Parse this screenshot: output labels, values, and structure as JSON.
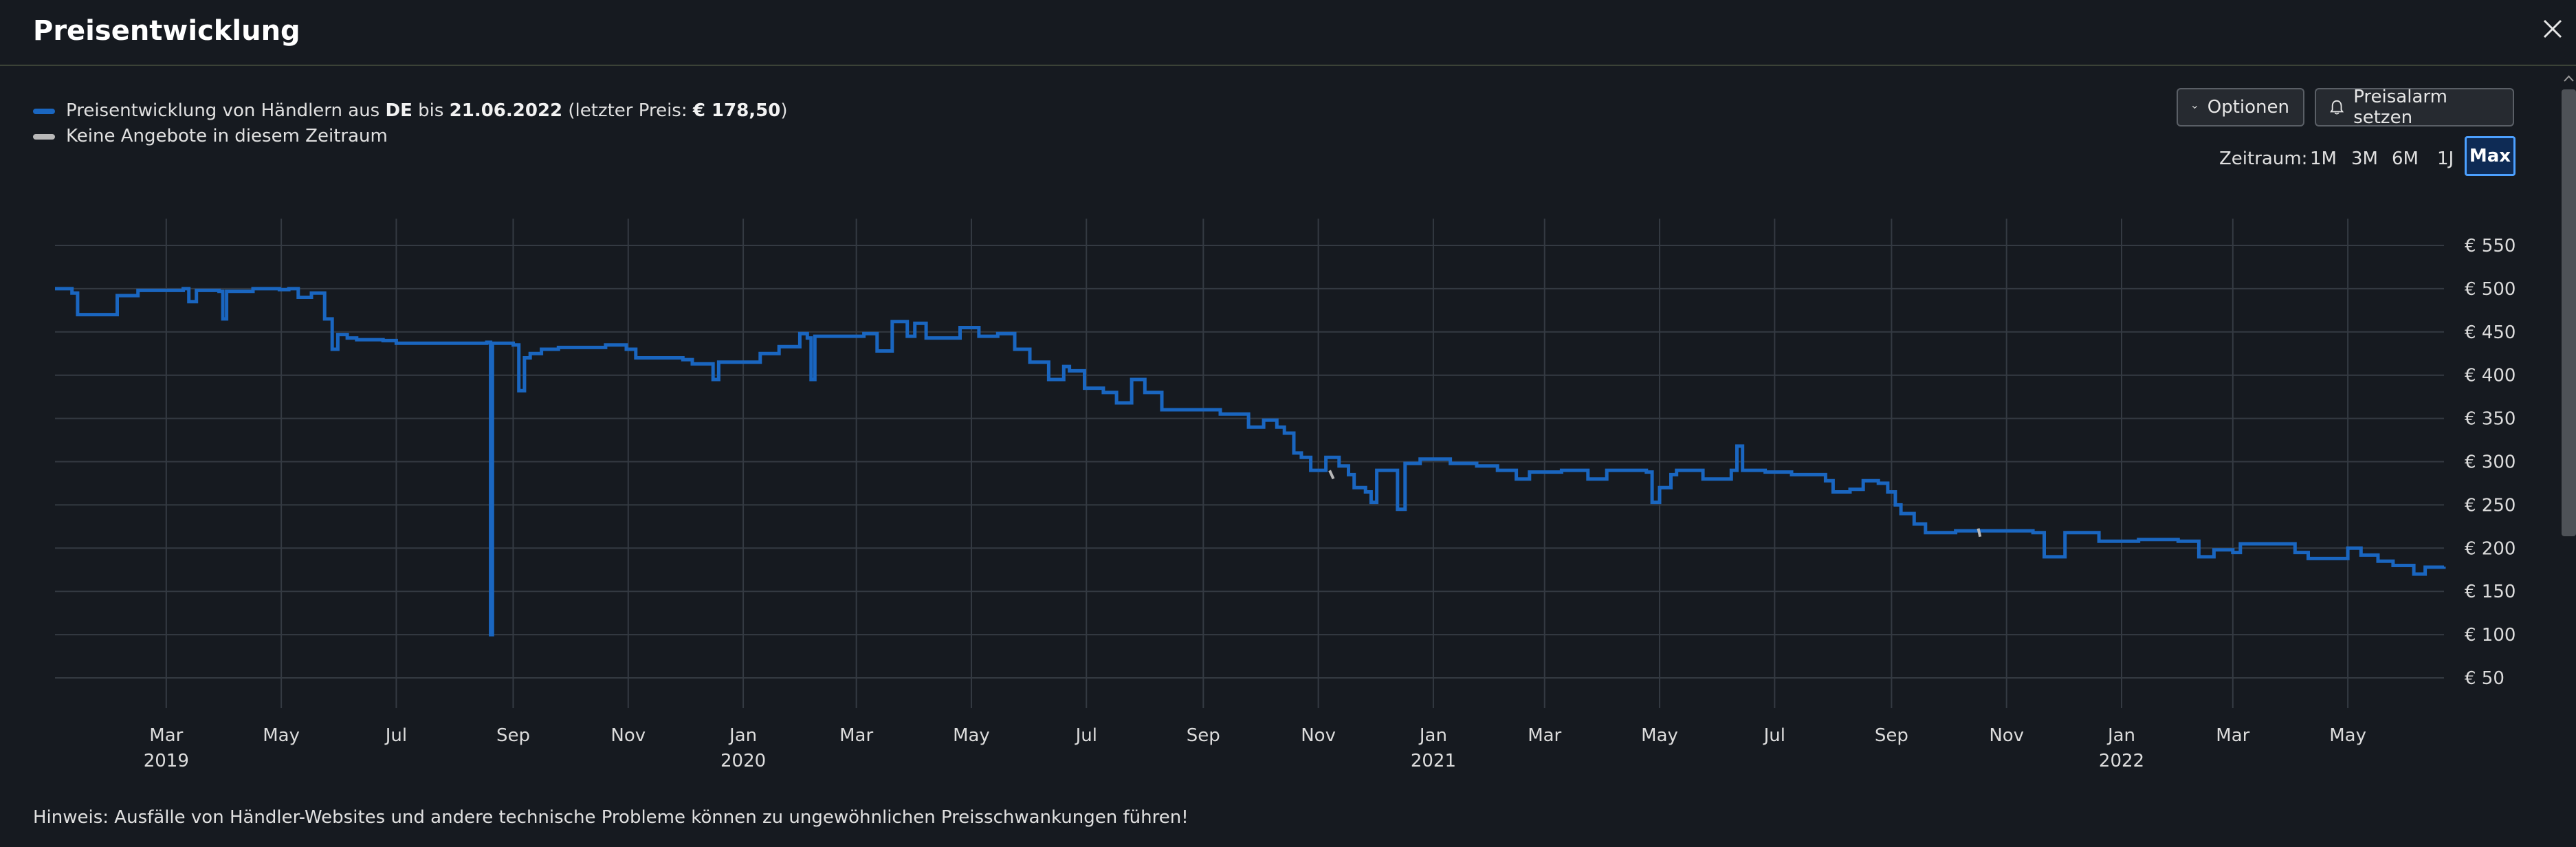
{
  "header": {
    "title": "Preisentwicklung"
  },
  "legend": {
    "line1_prefix": "Preisentwicklung von Händlern aus ",
    "country": "DE",
    "line1_mid": " bis ",
    "date": "21.06.2022",
    "line1_price_open": " (letzter Preis: ",
    "last_price": "€ 178,50",
    "line1_close": ")",
    "line2": "Keine Angebote in diesem Zeitraum"
  },
  "toolbar": {
    "options_label": "Optionen",
    "alarm_label": "Preisalarm setzen"
  },
  "timerange": {
    "label": "Zeitraum:",
    "options": [
      "1M",
      "3M",
      "6M",
      "1J",
      "Max"
    ],
    "selected": "Max"
  },
  "footer": {
    "note": "Hinweis: Ausfälle von Händler-Websites und andere technische Probleme können zu ungewöhnlichen Preisschwankungen führen!"
  },
  "colors": {
    "series": "#1a66c0",
    "no_offers": "#b8b8b8",
    "accent": "#4ca0ff",
    "background": "#161a20"
  },
  "chart_data": {
    "type": "line",
    "title": "",
    "xlabel": "",
    "ylabel": "",
    "x_range": [
      "2019-01-01",
      "2022-06-21"
    ],
    "ylim": [
      50,
      550
    ],
    "y_ticks": [
      50,
      100,
      150,
      200,
      250,
      300,
      350,
      400,
      450,
      500,
      550
    ],
    "y_tick_labels": [
      "€ 50",
      "€ 100",
      "€ 150",
      "€ 200",
      "€ 250",
      "€ 300",
      "€ 350",
      "€ 400",
      "€ 450",
      "€ 500",
      "€ 550"
    ],
    "x_ticks": [
      {
        "date": "2019-03-01",
        "label": "Mar",
        "year": "2019"
      },
      {
        "date": "2019-05-01",
        "label": "May",
        "year": ""
      },
      {
        "date": "2019-07-01",
        "label": "Jul",
        "year": ""
      },
      {
        "date": "2019-09-01",
        "label": "Sep",
        "year": ""
      },
      {
        "date": "2019-11-01",
        "label": "Nov",
        "year": ""
      },
      {
        "date": "2020-01-01",
        "label": "Jan",
        "year": "2020"
      },
      {
        "date": "2020-03-01",
        "label": "Mar",
        "year": ""
      },
      {
        "date": "2020-05-01",
        "label": "May",
        "year": ""
      },
      {
        "date": "2020-07-01",
        "label": "Jul",
        "year": ""
      },
      {
        "date": "2020-09-01",
        "label": "Sep",
        "year": ""
      },
      {
        "date": "2020-11-01",
        "label": "Nov",
        "year": ""
      },
      {
        "date": "2021-01-01",
        "label": "Jan",
        "year": "2021"
      },
      {
        "date": "2021-03-01",
        "label": "Mar",
        "year": ""
      },
      {
        "date": "2021-05-01",
        "label": "May",
        "year": ""
      },
      {
        "date": "2021-07-01",
        "label": "Jul",
        "year": ""
      },
      {
        "date": "2021-09-01",
        "label": "Sep",
        "year": ""
      },
      {
        "date": "2021-11-01",
        "label": "Nov",
        "year": ""
      },
      {
        "date": "2022-01-01",
        "label": "Jan",
        "year": "2022"
      },
      {
        "date": "2022-03-01",
        "label": "Mar",
        "year": ""
      },
      {
        "date": "2022-05-01",
        "label": "May",
        "year": ""
      }
    ],
    "grid": true,
    "legend": "top-left",
    "series": [
      {
        "name": "Preisentwicklung von Händlern aus DE",
        "points": [
          [
            "2019-01-01",
            500
          ],
          [
            "2019-01-10",
            495
          ],
          [
            "2019-01-13",
            470
          ],
          [
            "2019-01-31",
            470
          ],
          [
            "2019-02-03",
            492
          ],
          [
            "2019-02-14",
            498
          ],
          [
            "2019-03-10",
            500
          ],
          [
            "2019-03-13",
            485
          ],
          [
            "2019-03-17",
            498
          ],
          [
            "2019-03-29",
            497
          ],
          [
            "2019-03-31",
            465
          ],
          [
            "2019-04-02",
            497
          ],
          [
            "2019-04-16",
            500
          ],
          [
            "2019-04-30",
            499
          ],
          [
            "2019-05-05",
            500
          ],
          [
            "2019-05-10",
            490
          ],
          [
            "2019-05-17",
            495
          ],
          [
            "2019-05-24",
            465
          ],
          [
            "2019-05-28",
            430
          ],
          [
            "2019-05-31",
            447
          ],
          [
            "2019-06-05",
            443
          ],
          [
            "2019-06-10",
            441
          ],
          [
            "2019-06-24",
            440
          ],
          [
            "2019-07-01",
            437
          ],
          [
            "2019-07-12",
            437
          ],
          [
            "2019-07-24",
            437
          ],
          [
            "2019-08-08",
            437
          ],
          [
            "2019-08-18",
            438
          ],
          [
            "2019-08-20",
            100
          ],
          [
            "2019-08-21",
            437
          ],
          [
            "2019-08-28",
            437
          ],
          [
            "2019-09-01",
            435
          ],
          [
            "2019-09-04",
            382
          ],
          [
            "2019-09-07",
            420
          ],
          [
            "2019-09-10",
            425
          ],
          [
            "2019-09-16",
            430
          ],
          [
            "2019-09-25",
            432
          ],
          [
            "2019-10-10",
            432
          ],
          [
            "2019-10-20",
            435
          ],
          [
            "2019-10-31",
            430
          ],
          [
            "2019-11-05",
            420
          ],
          [
            "2019-11-30",
            418
          ],
          [
            "2019-12-05",
            413
          ],
          [
            "2019-12-13",
            413
          ],
          [
            "2019-12-16",
            395
          ],
          [
            "2019-12-19",
            415
          ],
          [
            "2020-01-01",
            415
          ],
          [
            "2020-01-10",
            425
          ],
          [
            "2020-01-20",
            433
          ],
          [
            "2020-01-31",
            448
          ],
          [
            "2020-02-04",
            443
          ],
          [
            "2020-02-06",
            395
          ],
          [
            "2020-02-08",
            445
          ],
          [
            "2020-02-29",
            445
          ],
          [
            "2020-03-05",
            448
          ],
          [
            "2020-03-12",
            428
          ],
          [
            "2020-03-20",
            462
          ],
          [
            "2020-03-28",
            445
          ],
          [
            "2020-04-01",
            460
          ],
          [
            "2020-04-07",
            443
          ],
          [
            "2020-04-20",
            443
          ],
          [
            "2020-04-25",
            455
          ],
          [
            "2020-05-05",
            445
          ],
          [
            "2020-05-15",
            448
          ],
          [
            "2020-05-24",
            430
          ],
          [
            "2020-06-01",
            415
          ],
          [
            "2020-06-11",
            395
          ],
          [
            "2020-06-19",
            410
          ],
          [
            "2020-06-22",
            405
          ],
          [
            "2020-06-30",
            385
          ],
          [
            "2020-07-10",
            380
          ],
          [
            "2020-07-17",
            368
          ],
          [
            "2020-07-25",
            395
          ],
          [
            "2020-08-01",
            380
          ],
          [
            "2020-08-10",
            360
          ],
          [
            "2020-08-28",
            360
          ],
          [
            "2020-09-10",
            355
          ],
          [
            "2020-09-25",
            340
          ],
          [
            "2020-10-03",
            348
          ],
          [
            "2020-10-10",
            340
          ],
          [
            "2020-10-14",
            333
          ],
          [
            "2020-10-19",
            310
          ],
          [
            "2020-10-23",
            305
          ],
          [
            "2020-10-28",
            290
          ],
          [
            "2020-11-05",
            305
          ],
          [
            "2020-11-12",
            295
          ],
          [
            "2020-11-17",
            285
          ],
          [
            "2020-11-20",
            270
          ],
          [
            "2020-11-26",
            265
          ],
          [
            "2020-11-29",
            253
          ],
          [
            "2020-12-02",
            290
          ],
          [
            "2020-12-10",
            290
          ],
          [
            "2020-12-13",
            245
          ],
          [
            "2020-12-17",
            298
          ],
          [
            "2020-12-25",
            303
          ],
          [
            "2021-01-10",
            298
          ],
          [
            "2021-01-24",
            295
          ],
          [
            "2021-02-04",
            290
          ],
          [
            "2021-02-14",
            280
          ],
          [
            "2021-02-21",
            288
          ],
          [
            "2021-03-10",
            290
          ],
          [
            "2021-03-24",
            280
          ],
          [
            "2021-04-03",
            290
          ],
          [
            "2021-04-24",
            288
          ],
          [
            "2021-04-27",
            253
          ],
          [
            "2021-05-01",
            270
          ],
          [
            "2021-05-07",
            285
          ],
          [
            "2021-05-10",
            290
          ],
          [
            "2021-05-24",
            280
          ],
          [
            "2021-06-05",
            280
          ],
          [
            "2021-06-08",
            290
          ],
          [
            "2021-06-11",
            318
          ],
          [
            "2021-06-14",
            290
          ],
          [
            "2021-06-26",
            288
          ],
          [
            "2021-07-10",
            285
          ],
          [
            "2021-07-17",
            285
          ],
          [
            "2021-07-28",
            278
          ],
          [
            "2021-08-01",
            265
          ],
          [
            "2021-08-10",
            268
          ],
          [
            "2021-08-17",
            278
          ],
          [
            "2021-08-25",
            275
          ],
          [
            "2021-08-30",
            265
          ],
          [
            "2021-09-03",
            250
          ],
          [
            "2021-09-06",
            240
          ],
          [
            "2021-09-13",
            228
          ],
          [
            "2021-09-19",
            218
          ],
          [
            "2021-10-01",
            218
          ],
          [
            "2021-10-05",
            220
          ],
          [
            "2021-10-20",
            220
          ],
          [
            "2021-11-05",
            220
          ],
          [
            "2021-11-15",
            218
          ],
          [
            "2021-11-21",
            190
          ],
          [
            "2021-11-29",
            190
          ],
          [
            "2021-12-02",
            218
          ],
          [
            "2021-12-12",
            218
          ],
          [
            "2021-12-20",
            208
          ],
          [
            "2022-01-10",
            210
          ],
          [
            "2022-01-31",
            208
          ],
          [
            "2022-02-11",
            190
          ],
          [
            "2022-02-19",
            198
          ],
          [
            "2022-03-01",
            195
          ],
          [
            "2022-03-05",
            205
          ],
          [
            "2022-03-24",
            205
          ],
          [
            "2022-04-03",
            195
          ],
          [
            "2022-04-10",
            188
          ],
          [
            "2022-04-28",
            188
          ],
          [
            "2022-05-01",
            200
          ],
          [
            "2022-05-08",
            192
          ],
          [
            "2022-05-17",
            185
          ],
          [
            "2022-05-25",
            180
          ],
          [
            "2022-06-05",
            170
          ],
          [
            "2022-06-11",
            178
          ],
          [
            "2022-06-21",
            178.5
          ]
        ]
      }
    ],
    "no_offer_periods": [
      {
        "x": [
          "2020-11-07",
          "2020-11-09"
        ],
        "y": 285
      },
      {
        "x": [
          "2021-10-17",
          "2021-10-18"
        ],
        "y": 218
      }
    ]
  }
}
